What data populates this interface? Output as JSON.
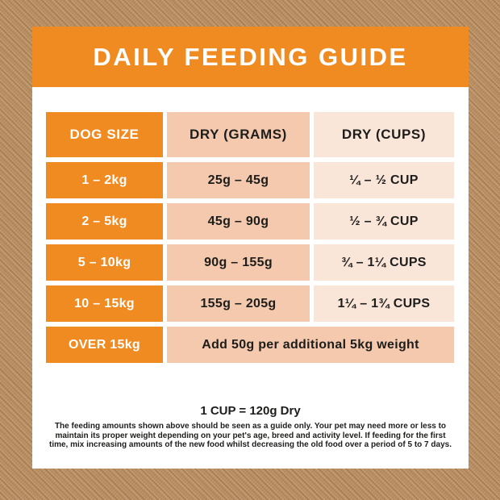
{
  "banner": {
    "title": "DAILY FEEDING GUIDE"
  },
  "table": {
    "columns": [
      "DOG SIZE",
      "DRY (GRAMS)",
      "DRY (CUPS)"
    ],
    "rows": [
      {
        "size": "1 – 2kg",
        "grams": "25g – 45g",
        "cups": "¼ – ½ CUP"
      },
      {
        "size": "2 – 5kg",
        "grams": "45g – 90g",
        "cups": "½ – ¾ CUP"
      },
      {
        "size": "5 – 10kg",
        "grams": "90g – 155g",
        "cups": "¾ – 1¼ CUPS"
      },
      {
        "size": "10 – 15kg",
        "grams": "155g – 205g",
        "cups": "1¼ – 1¾ CUPS"
      }
    ],
    "over_row": {
      "size": "OVER 15kg",
      "note": "Add 50g per additional 5kg weight"
    }
  },
  "footer": {
    "cup_note": "1 CUP = 120g Dry",
    "disclaimer": "The feeding amounts shown above should be seen as a guide only. Your pet may need more or less to maintain its proper weight depending on your pet's age, breed and activity level. If feeding for the first time, mix increasing amounts of the new food whilst decreasing the old food over a period of 5 to 7 days."
  },
  "colors": {
    "orange": "#EF8B21",
    "peach_medium": "#F4C9AE",
    "peach_light": "#FAE5D9",
    "text_dark": "#1D1D1B",
    "card_bg": "#FFFFFF",
    "kraft_brown": "#B78B5E"
  }
}
